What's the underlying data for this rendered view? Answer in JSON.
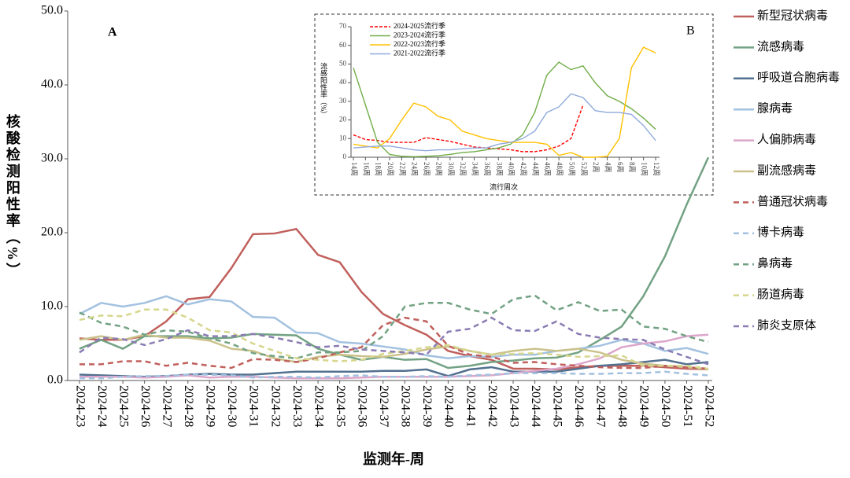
{
  "chart_data": [
    {
      "type": "line",
      "panel": "A",
      "ylabel": "核酸检测阳性率（%）",
      "xlabel": "监测年-周",
      "categories": [
        "2024-23",
        "2024-24",
        "2024-25",
        "2024-26",
        "2024-27",
        "2024-28",
        "2024-29",
        "2024-30",
        "2024-31",
        "2024-32",
        "2024-33",
        "2024-34",
        "2024-35",
        "2024-36",
        "2024-37",
        "2024-38",
        "2024-39",
        "2024-40",
        "2024-41",
        "2024-42",
        "2024-43",
        "2024-44",
        "2024-45",
        "2024-46",
        "2024-47",
        "2024-48",
        "2024-49",
        "2024-50",
        "2024-51",
        "2024-52"
      ],
      "ylim": [
        0,
        50
      ],
      "yticks": [
        {
          "value": 0,
          "label": "0.0"
        },
        {
          "value": 10,
          "label": "10.0"
        },
        {
          "value": 20,
          "label": "20.0"
        },
        {
          "value": 30,
          "label": "30.0"
        },
        {
          "value": 40,
          "label": "40.0"
        },
        {
          "value": 50,
          "label": "50.0"
        }
      ],
      "series": [
        {
          "name": "新型冠状病毒",
          "color": "#c0605c",
          "style": "solid",
          "values": [
            5.7,
            5.5,
            5.5,
            6,
            8,
            11,
            11.3,
            15.2,
            19.8,
            19.9,
            20.5,
            17,
            16,
            12,
            9,
            7.5,
            6.2,
            4,
            3.3,
            2.8,
            1.6,
            1.6,
            1.5,
            1.8,
            2,
            2,
            2,
            1.8,
            1.6,
            1.5
          ]
        },
        {
          "name": "流感病毒",
          "color": "#72a283",
          "style": "solid",
          "values": [
            4.3,
            5.5,
            4.3,
            6,
            6,
            6,
            5.7,
            5.8,
            6.3,
            6.2,
            6.1,
            4.3,
            3.5,
            2.8,
            3.2,
            2.8,
            2.9,
            1.7,
            2,
            2.5,
            2.7,
            3,
            3.1,
            3.8,
            5.5,
            7.3,
            11.4,
            16.8,
            23.8,
            30.2
          ]
        },
        {
          "name": "呼吸道合胞病毒",
          "color": "#52708f",
          "style": "solid",
          "values": [
            0.8,
            0.7,
            0.6,
            0.5,
            0.6,
            0.8,
            0.9,
            0.8,
            0.8,
            1,
            1.2,
            1.2,
            1.2,
            1.2,
            1.3,
            1.3,
            1.5,
            0.6,
            1.5,
            1.8,
            1.2,
            1.2,
            1.2,
            1.6,
            2,
            2.2,
            2.5,
            2.8,
            2.2,
            2.5
          ]
        },
        {
          "name": "腺病毒",
          "color": "#a3c1e0",
          "style": "solid",
          "values": [
            9,
            10.5,
            10,
            10.5,
            11.4,
            10.3,
            11,
            10.7,
            8.6,
            8.5,
            6.5,
            6.4,
            5.2,
            5,
            4.6,
            4.2,
            3.4,
            3,
            3.3,
            3.2,
            3.5,
            3.5,
            4,
            4.3,
            4.7,
            5.5,
            5,
            4,
            4.4,
            3.6
          ]
        },
        {
          "name": "人偏肺病毒",
          "color": "#dca6cb",
          "style": "solid",
          "values": [
            0.5,
            0.5,
            0.5,
            0.4,
            0.5,
            0.7,
            0.4,
            0.5,
            0.5,
            0.4,
            0.3,
            0.3,
            0.3,
            0.4,
            0.5,
            0.5,
            0.5,
            0.5,
            0.6,
            0.7,
            1,
            1.3,
            1.6,
            2.2,
            3,
            4.5,
            5,
            5.3,
            6,
            6.2
          ]
        },
        {
          "name": "副流感病毒",
          "color": "#cbc28b",
          "style": "solid",
          "values": [
            5.5,
            6,
            5.5,
            6.2,
            5.8,
            5.8,
            5.4,
            4.3,
            4,
            3,
            2.5,
            3.2,
            3.5,
            3.3,
            3.2,
            3.6,
            4.2,
            4.6,
            4,
            3.5,
            4,
            4.3,
            4,
            4.3,
            3.8,
            2.8,
            2.3,
            2,
            1.8,
            1.5
          ]
        },
        {
          "name": "普通冠状病毒",
          "color": "#c0605c",
          "style": "dashed",
          "values": [
            2.2,
            2.2,
            2.6,
            2.6,
            2,
            2.4,
            2,
            1.7,
            2.9,
            2.8,
            2.5,
            3,
            3.8,
            4.5,
            7.5,
            8.5,
            8,
            4.7,
            3.5,
            3.2,
            2.4,
            2.5,
            2.2,
            2,
            1.8,
            1.7,
            1.7,
            2,
            1.8,
            1.6
          ]
        },
        {
          "name": "博卡病毒",
          "color": "#a3c1e0",
          "style": "dashed",
          "values": [
            0.3,
            0.3,
            0.5,
            0.6,
            0.6,
            0.8,
            0.8,
            0.7,
            0.4,
            0.5,
            0.5,
            0.4,
            0.6,
            0.7,
            0.5,
            0.5,
            0.6,
            0.5,
            0.7,
            0.8,
            1,
            1,
            1,
            0.9,
            0.9,
            1,
            1,
            1.2,
            0.9,
            0.7
          ]
        },
        {
          "name": "鼻病毒",
          "color": "#72a283",
          "style": "dashed",
          "values": [
            9.2,
            7.8,
            7.3,
            6.2,
            6.8,
            6.6,
            5.7,
            5,
            3.7,
            3.3,
            3,
            3.8,
            3.8,
            4,
            6,
            10,
            10.5,
            10.5,
            9.6,
            9,
            11,
            11.5,
            9.5,
            10.6,
            9.4,
            9.6,
            7.3,
            7,
            6,
            5.2
          ]
        },
        {
          "name": "肠道病毒",
          "color": "#d6d68d",
          "style": "dashed",
          "values": [
            8.2,
            8.8,
            8.7,
            9.6,
            9.6,
            8.5,
            6.8,
            6.5,
            5,
            4,
            3,
            2.8,
            2.6,
            2.8,
            3.6,
            4,
            4.5,
            4.8,
            4,
            3.5,
            3.6,
            3.7,
            3.5,
            3.2,
            3.3,
            3.4,
            2,
            2,
            2,
            1.6
          ]
        },
        {
          "name": "肺炎支原体",
          "color": "#8a7cb3",
          "style": "dashed",
          "values": [
            3.8,
            5.8,
            5.6,
            4.8,
            5.6,
            6.8,
            6,
            6,
            6.3,
            5.8,
            5.2,
            4.5,
            4.7,
            4.2,
            4,
            3.8,
            3.5,
            6.6,
            7,
            8.5,
            6.8,
            6.7,
            8,
            6.3,
            5.8,
            5.6,
            5.5,
            4.2,
            3.2,
            2.2
          ]
        }
      ]
    },
    {
      "type": "line",
      "panel": "B",
      "ylabel": "流感阳性率（%）",
      "xlabel": "流行周次",
      "categories": [
        "14周",
        "16周",
        "18周",
        "20周",
        "22周",
        "24周",
        "26周",
        "28周",
        "30周",
        "32周",
        "34周",
        "36周",
        "38周",
        "40周",
        "42周",
        "44周",
        "46周",
        "48周",
        "50周",
        "52周",
        "2周",
        "4周",
        "6周",
        "8周",
        "10周",
        "12周"
      ],
      "ylim": [
        0,
        70
      ],
      "yticks": [
        0,
        10,
        20,
        30,
        40,
        50,
        60,
        70
      ],
      "series": [
        {
          "name": "2024-2025流行季",
          "color": "#ff0000",
          "style": "dashed",
          "values": [
            12,
            9.5,
            9,
            8,
            8,
            8,
            10.5,
            9.5,
            8.5,
            7,
            5.5,
            5,
            4.5,
            4,
            3,
            3,
            4,
            6,
            10,
            28,
            null,
            null,
            null,
            null,
            null,
            null
          ]
        },
        {
          "name": "2023-2024流行季",
          "color": "#70ad47",
          "style": "solid",
          "values": [
            48,
            28,
            8,
            1.5,
            0.5,
            0.3,
            0.5,
            0.8,
            1.5,
            2.5,
            3,
            4,
            5,
            7,
            12,
            24,
            44,
            51,
            47,
            49,
            40,
            33,
            30,
            26,
            21,
            15
          ]
        },
        {
          "name": "2022-2023流行季",
          "color": "#ffc000",
          "style": "solid",
          "values": [
            7,
            6,
            5,
            10,
            20,
            29,
            27,
            22,
            20,
            14,
            12,
            10,
            9,
            8,
            8,
            8,
            7,
            1,
            2.5,
            0,
            0,
            0.5,
            10,
            48,
            59,
            56
          ]
        },
        {
          "name": "2021-2022流行季",
          "color": "#8faadc",
          "style": "solid",
          "values": [
            5,
            5.5,
            6,
            6,
            5,
            4,
            3.5,
            4,
            4,
            4.5,
            5,
            5,
            7,
            8,
            10,
            14,
            24,
            27,
            34,
            32,
            25,
            24,
            24,
            23,
            17,
            9
          ]
        }
      ]
    }
  ]
}
